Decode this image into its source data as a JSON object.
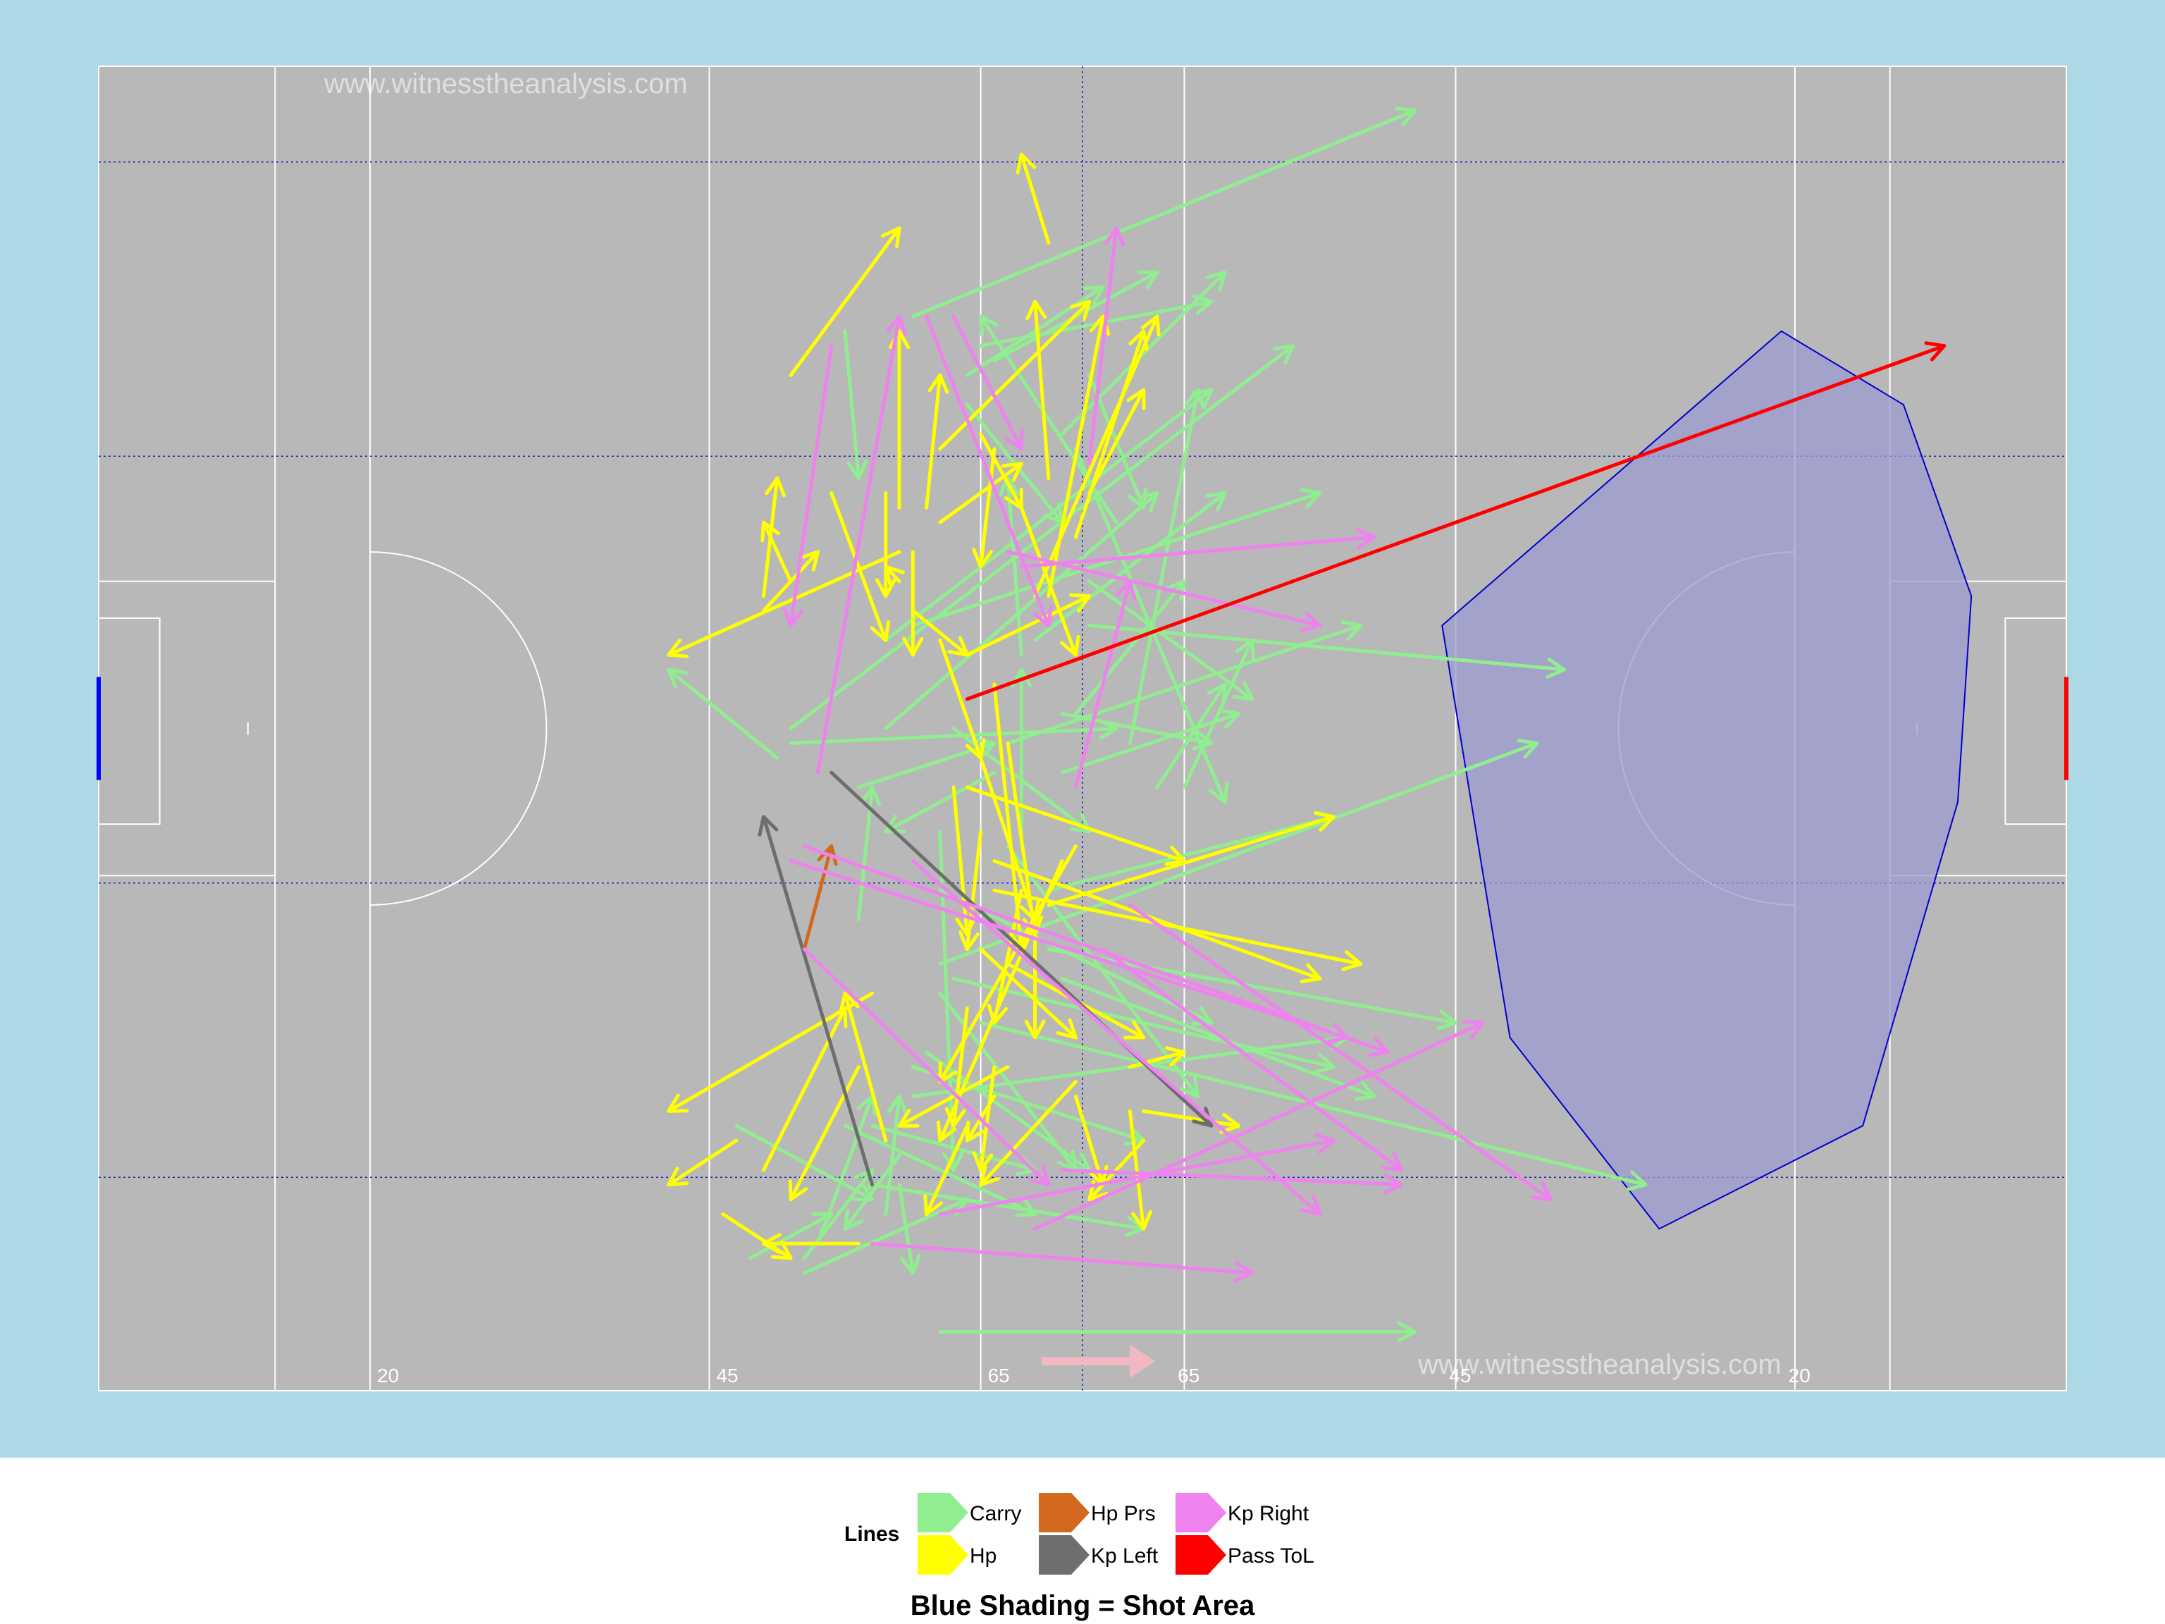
{
  "watermark": "www.witnesstheanalysis.com",
  "colors": {
    "background": "#add8e6",
    "pitch": "#b8b8b8",
    "pitch_lines": "#ffffff",
    "grid": "#2020c0",
    "shot_area_fill": "#9b9bd2",
    "shot_area_stroke": "#0000cc",
    "left_goal": "#0000ff",
    "right_goal": "#ff0000",
    "direction_arrow": "#f1b8c4"
  },
  "pitch_labels": [
    "20",
    "45",
    "65",
    "65",
    "45",
    "20"
  ],
  "legend": {
    "title": "Lines",
    "items": [
      {
        "label": "Carry",
        "color": "#90ee90"
      },
      {
        "label": "Hp",
        "color": "#ffff00"
      },
      {
        "label": "Hp Prs",
        "color": "#d2691e"
      },
      {
        "label": "Kp Left",
        "color": "#6e6e6e"
      },
      {
        "label": "Kp Right",
        "color": "#ee82ee"
      },
      {
        "label": "Pass ToL",
        "color": "#ff0000"
      }
    ]
  },
  "caption": "Blue Shading = Shot Area",
  "chart_data": {
    "type": "arrow-map",
    "x_unit": "metres along pitch (0 = left goal, 145 = right goal)",
    "y_unit": "metres across pitch (0 = bottom touchline, 90 = top touchline)",
    "xlim": [
      0,
      145
    ],
    "ylim": [
      0,
      90
    ],
    "grid": true,
    "shot_area": [
      [
        124,
        72
      ],
      [
        133,
        67
      ],
      [
        138,
        54
      ],
      [
        137,
        40
      ],
      [
        130,
        18
      ],
      [
        115,
        11
      ],
      [
        104,
        24
      ],
      [
        99,
        52
      ]
    ],
    "series": [
      {
        "name": "Carry",
        "color": "#90ee90",
        "arrows": [
          [
            60,
            73,
            97,
            87
          ],
          [
            64,
            69,
            74,
            75
          ],
          [
            65,
            71,
            82,
            74
          ],
          [
            66,
            70,
            78,
            76
          ],
          [
            55,
            72,
            56,
            62
          ],
          [
            73,
            69,
            77,
            60
          ],
          [
            75,
            59,
            65,
            73
          ],
          [
            64,
            67,
            71,
            59
          ],
          [
            72,
            64,
            83,
            40
          ],
          [
            69,
            51,
            83,
            61
          ],
          [
            73,
            55,
            85,
            47
          ],
          [
            73,
            52,
            108,
            49
          ],
          [
            71,
            46,
            82,
            44
          ],
          [
            71,
            42,
            84,
            46
          ],
          [
            78,
            41,
            83,
            48
          ],
          [
            71,
            65,
            83,
            76
          ],
          [
            60,
            52,
            90,
            61
          ],
          [
            80,
            41,
            85,
            51
          ],
          [
            72,
            46,
            80,
            55
          ],
          [
            76,
            44,
            81,
            68
          ],
          [
            63,
            45,
            73,
            38
          ],
          [
            51,
            44,
            75,
            45
          ],
          [
            58,
            45,
            78,
            61
          ],
          [
            58,
            51,
            82,
            68
          ],
          [
            50,
            43,
            42,
            49
          ],
          [
            51,
            45,
            88,
            71
          ],
          [
            67,
            44,
            93,
            52
          ],
          [
            68,
            50,
            67,
            62
          ],
          [
            66,
            42,
            58,
            38
          ],
          [
            68,
            37,
            68,
            49
          ],
          [
            56,
            32,
            57,
            41
          ],
          [
            62,
            29,
            106,
            44
          ],
          [
            56,
            41,
            66,
            44
          ],
          [
            70,
            34,
            91,
            39
          ],
          [
            67,
            37,
            81,
            20
          ],
          [
            62,
            38,
            63,
            15
          ],
          [
            62,
            34,
            82,
            25
          ],
          [
            63,
            28,
            91,
            22
          ],
          [
            70,
            30,
            100,
            25
          ],
          [
            71,
            28,
            94,
            20
          ],
          [
            62,
            27,
            72,
            15
          ],
          [
            65,
            25,
            114,
            14
          ],
          [
            61,
            23,
            73,
            15
          ],
          [
            60,
            22,
            77,
            17
          ],
          [
            60,
            20,
            92,
            24
          ],
          [
            59,
            16,
            55,
            11
          ],
          [
            47,
            18,
            57,
            13
          ],
          [
            53,
            10,
            57,
            20
          ],
          [
            57,
            18,
            69,
            15
          ],
          [
            55,
            18,
            69,
            12
          ],
          [
            59,
            14,
            60,
            8
          ],
          [
            57,
            14,
            77,
            11
          ],
          [
            58,
            12,
            59,
            20
          ],
          [
            48,
            9,
            54,
            12
          ],
          [
            52,
            8,
            64,
            13
          ],
          [
            52,
            9,
            57,
            15
          ],
          [
            62,
            4,
            97,
            4
          ]
        ]
      },
      {
        "name": "Hp",
        "color": "#ffff00",
        "arrows": [
          [
            51,
            69,
            59,
            79
          ],
          [
            70,
            78,
            68,
            84
          ],
          [
            59,
            60,
            59,
            72
          ],
          [
            61,
            60,
            62,
            69
          ],
          [
            70,
            62,
            69,
            74
          ],
          [
            73,
            61,
            77,
            68
          ],
          [
            58,
            61,
            58,
            54
          ],
          [
            60,
            57,
            60,
            50
          ],
          [
            66,
            64,
            65,
            56
          ],
          [
            65,
            65,
            68,
            60
          ],
          [
            70,
            54,
            74,
            73
          ],
          [
            72,
            58,
            77,
            72
          ],
          [
            62,
            64,
            73,
            74
          ],
          [
            69,
            54,
            78,
            73
          ],
          [
            54,
            61,
            58,
            51
          ],
          [
            49,
            54,
            50,
            62
          ],
          [
            51,
            55,
            49,
            59
          ],
          [
            49,
            53,
            53,
            57
          ],
          [
            59,
            57,
            42,
            50
          ],
          [
            68,
            60,
            72,
            50
          ],
          [
            62,
            59,
            68,
            63
          ],
          [
            62,
            51,
            65,
            43
          ],
          [
            72,
            37,
            62,
            21
          ],
          [
            71,
            36,
            62,
            17
          ],
          [
            59,
            55,
            58,
            56
          ],
          [
            60,
            53,
            64,
            50
          ],
          [
            64,
            50,
            73,
            54
          ],
          [
            67,
            44,
            69,
            31
          ],
          [
            66,
            48,
            68,
            30
          ],
          [
            63,
            41,
            64,
            31
          ],
          [
            65,
            43,
            69,
            32
          ],
          [
            70,
            33,
            91,
            39
          ],
          [
            65,
            38,
            64,
            30
          ],
          [
            69,
            32,
            69,
            24
          ],
          [
            64,
            41,
            80,
            36
          ],
          [
            66,
            36,
            90,
            28
          ],
          [
            66,
            34,
            93,
            29
          ],
          [
            67,
            29,
            77,
            24
          ],
          [
            65,
            30,
            72,
            24
          ],
          [
            68,
            34,
            66,
            25
          ],
          [
            64,
            26,
            63,
            18
          ],
          [
            57,
            27,
            42,
            19
          ],
          [
            56,
            22,
            51,
            13
          ],
          [
            49,
            15,
            55,
            26
          ],
          [
            58,
            17,
            55,
            27
          ],
          [
            67,
            22,
            59,
            18
          ],
          [
            72,
            21,
            65,
            14
          ],
          [
            76,
            19,
            77,
            11
          ],
          [
            64,
            18,
            61,
            12
          ],
          [
            66,
            20,
            64,
            17
          ],
          [
            66,
            22,
            65,
            15
          ],
          [
            46,
            12,
            51,
            9
          ],
          [
            47,
            17,
            42,
            14
          ],
          [
            56,
            10,
            49,
            10
          ],
          [
            77,
            17,
            73,
            13
          ],
          [
            72,
            20,
            74,
            14
          ],
          [
            76,
            22,
            80,
            23
          ],
          [
            77,
            19,
            84,
            18
          ]
        ]
      },
      {
        "name": "Hp Prs",
        "color": "#d2691e",
        "arrows": [
          [
            52,
            30,
            54,
            37
          ]
        ]
      },
      {
        "name": "Kp Left",
        "color": "#6e6e6e",
        "arrows": [
          [
            54,
            42,
            82,
            18
          ],
          [
            57,
            14,
            49,
            39
          ]
        ]
      },
      {
        "name": "Kp Right",
        "color": "#ee82ee",
        "arrows": [
          [
            54,
            71,
            51,
            52
          ],
          [
            53,
            42,
            59,
            73
          ],
          [
            61,
            73,
            70,
            52
          ],
          [
            63,
            73,
            68,
            64
          ],
          [
            73,
            63,
            75,
            79
          ],
          [
            68,
            56,
            94,
            58
          ],
          [
            67,
            57,
            90,
            52
          ],
          [
            72,
            41,
            76,
            55
          ],
          [
            52,
            37,
            95,
            23
          ],
          [
            51,
            36,
            92,
            24
          ],
          [
            76,
            33,
            107,
            13
          ],
          [
            74,
            30,
            96,
            15
          ],
          [
            60,
            36,
            90,
            12
          ],
          [
            62,
            12,
            91,
            17
          ],
          [
            57,
            10,
            85,
            8
          ],
          [
            69,
            11,
            102,
            25
          ],
          [
            71,
            15,
            96,
            14
          ],
          [
            52,
            30,
            70,
            14
          ]
        ]
      },
      {
        "name": "Pass ToL",
        "color": "#ff0000",
        "arrows": [
          [
            64,
            47,
            136,
            71
          ]
        ]
      }
    ]
  }
}
